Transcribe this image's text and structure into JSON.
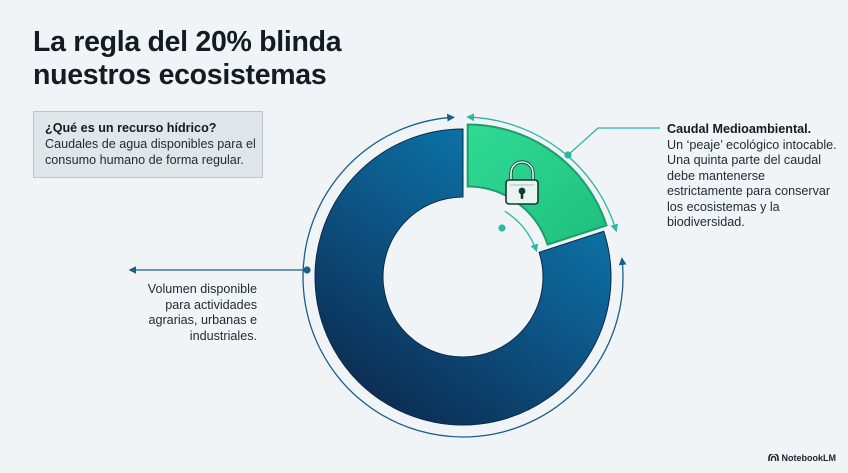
{
  "title": {
    "line1": "La regla del 20% blinda",
    "line2": "nuestros ecosistemas"
  },
  "definition": {
    "question": "¿Qué es un recurso hídrico?",
    "answer": "Caudales de agua disponibles para el consumo humano de forma regular."
  },
  "volume_label": "Volumen disponible para actividades agrarias, urbanas e industriales.",
  "eco_label": {
    "heading": "Caudal Medioambiental.",
    "body": "Un ‘peaje’ ecológico intocable. Una quinta parte del caudal debe mantenerse estrictamente para conservar los ecosistemas y la biodiversidad."
  },
  "chart_data": {
    "type": "pie",
    "style": "donut",
    "slices": [
      {
        "key": "eco",
        "value": 20,
        "color": "#2bd48f",
        "highlight": true
      },
      {
        "key": "available",
        "value": 80,
        "color": "#0d4a7a"
      }
    ]
  },
  "icons": {
    "slice_icon": "lock-icon",
    "brand_icon": "notebooklm-logo-icon"
  },
  "colors": {
    "accent": "#2bd48f",
    "ring_dark": "#0e2f55",
    "ring_light": "#0b7fb3",
    "text": "#1c2430"
  },
  "brand": "NotebookLM"
}
